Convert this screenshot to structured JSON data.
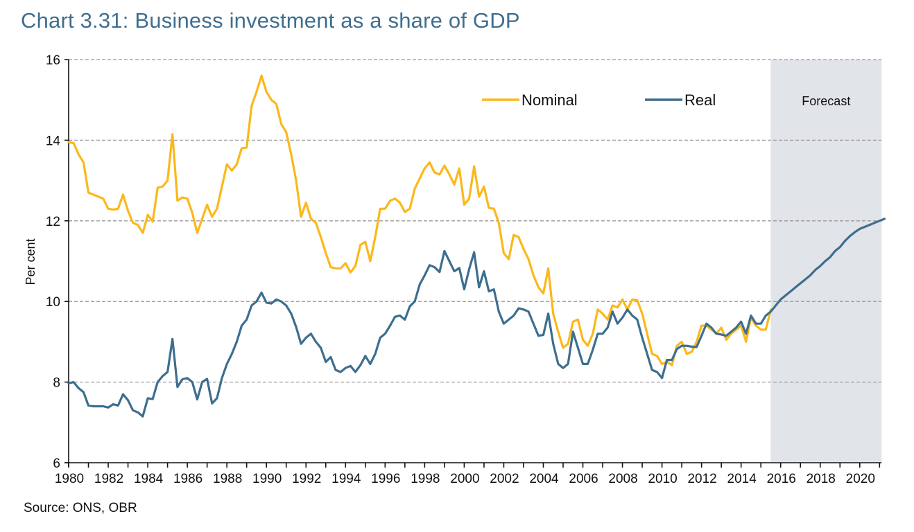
{
  "title": "Chart 3.31: Business investment as a share of GDP",
  "source": "Source: ONS, OBR",
  "colors": {
    "nominal": "#fbb81b",
    "real": "#3d6e8f",
    "forecast_shade": "#e1e4e9",
    "grid": "#999999",
    "title": "#3f6e8f"
  },
  "chart_data": {
    "type": "line",
    "title": "Chart 3.31: Business investment as a share of GDP",
    "xlabel": "",
    "ylabel": "Per cent",
    "ylim": [
      6,
      16
    ],
    "xlim": [
      1980,
      2021.1
    ],
    "yticks": [
      6,
      8,
      10,
      12,
      14,
      16
    ],
    "xticks": [
      1980,
      1982,
      1984,
      1986,
      1988,
      1990,
      1992,
      1994,
      1996,
      1998,
      2000,
      2002,
      2004,
      2006,
      2008,
      2010,
      2012,
      2014,
      2016,
      2018,
      2020
    ],
    "grid": "horizontal dashed",
    "legend_position": "top-right",
    "frequency": "quarterly",
    "start": 1980,
    "forecast": {
      "label": "Forecast",
      "start": 2015.5,
      "end": 2021.1
    },
    "series": [
      {
        "name": "Nominal",
        "color": "#fbb81b",
        "values": [
          13.95,
          13.93,
          13.65,
          13.45,
          12.7,
          12.65,
          12.6,
          12.55,
          12.3,
          12.28,
          12.3,
          12.65,
          12.25,
          11.95,
          11.9,
          11.7,
          12.15,
          11.98,
          12.82,
          12.85,
          13.0,
          14.15,
          12.5,
          12.58,
          12.55,
          12.2,
          11.7,
          12.05,
          12.4,
          12.1,
          12.3,
          12.85,
          13.4,
          13.25,
          13.4,
          13.8,
          13.82,
          14.85,
          15.2,
          15.6,
          15.2,
          15.0,
          14.9,
          14.4,
          14.2,
          13.65,
          13.0,
          12.1,
          12.45,
          12.05,
          11.95,
          11.6,
          11.2,
          10.85,
          10.82,
          10.82,
          10.95,
          10.72,
          10.88,
          11.4,
          11.48,
          11.0,
          11.6,
          12.3,
          12.3,
          12.5,
          12.55,
          12.45,
          12.22,
          12.3,
          12.8,
          13.05,
          13.3,
          13.45,
          13.2,
          13.15,
          13.37,
          13.15,
          12.9,
          13.3,
          12.4,
          12.55,
          13.35,
          12.6,
          12.85,
          12.32,
          12.3,
          11.95,
          11.2,
          11.05,
          11.65,
          11.6,
          11.3,
          11.05,
          10.65,
          10.35,
          10.2,
          10.82,
          9.7,
          9.25,
          8.85,
          8.95,
          9.5,
          9.55,
          9.05,
          8.9,
          9.2,
          9.8,
          9.7,
          9.55,
          9.9,
          9.85,
          10.05,
          9.8,
          10.05,
          10.03,
          9.7,
          9.2,
          8.7,
          8.65,
          8.45,
          8.5,
          8.42,
          8.9,
          9.0,
          8.7,
          8.75,
          9.0,
          9.4,
          9.4,
          9.3,
          9.2,
          9.35,
          9.05,
          9.2,
          9.3,
          9.4,
          9.0,
          9.6,
          9.4,
          9.3,
          9.3,
          9.8
        ]
      },
      {
        "name": "Real",
        "color": "#3d6e8f",
        "values": [
          7.97,
          8.0,
          7.85,
          7.75,
          7.42,
          7.4,
          7.4,
          7.4,
          7.37,
          7.45,
          7.42,
          7.7,
          7.55,
          7.3,
          7.25,
          7.15,
          7.6,
          7.58,
          8.0,
          8.15,
          8.25,
          9.07,
          7.88,
          8.07,
          8.1,
          8.0,
          7.57,
          8.0,
          8.08,
          7.47,
          7.6,
          8.1,
          8.45,
          8.7,
          9.0,
          9.4,
          9.55,
          9.9,
          10.0,
          10.22,
          9.97,
          9.95,
          10.05,
          10.0,
          9.9,
          9.7,
          9.37,
          8.95,
          9.1,
          9.2,
          9.0,
          8.85,
          8.5,
          8.62,
          8.3,
          8.25,
          8.35,
          8.4,
          8.25,
          8.42,
          8.65,
          8.45,
          8.7,
          9.1,
          9.2,
          9.4,
          9.62,
          9.65,
          9.55,
          9.88,
          10.0,
          10.42,
          10.65,
          10.9,
          10.85,
          10.73,
          11.25,
          11.0,
          10.75,
          10.83,
          10.3,
          10.8,
          11.22,
          10.35,
          10.75,
          10.25,
          10.3,
          9.75,
          9.45,
          9.55,
          9.65,
          9.83,
          9.8,
          9.75,
          9.45,
          9.15,
          9.17,
          9.7,
          8.95,
          8.45,
          8.35,
          8.45,
          9.25,
          8.85,
          8.45,
          8.45,
          8.8,
          9.2,
          9.2,
          9.35,
          9.75,
          9.45,
          9.6,
          9.8,
          9.65,
          9.55,
          9.1,
          8.7,
          8.3,
          8.25,
          8.1,
          8.55,
          8.55,
          8.82,
          8.9,
          8.9,
          8.88,
          8.87,
          9.15,
          9.45,
          9.35,
          9.2,
          9.18,
          9.15,
          9.25,
          9.35,
          9.5,
          9.2,
          9.65,
          9.45,
          9.45,
          9.65,
          9.75,
          9.9,
          10.05,
          10.15,
          10.25,
          10.35,
          10.45,
          10.55,
          10.65,
          10.78,
          10.88,
          11.0,
          11.1,
          11.25,
          11.35,
          11.5,
          11.62,
          11.72,
          11.8,
          11.85,
          11.9,
          11.95,
          12.0,
          12.05
        ]
      }
    ]
  }
}
